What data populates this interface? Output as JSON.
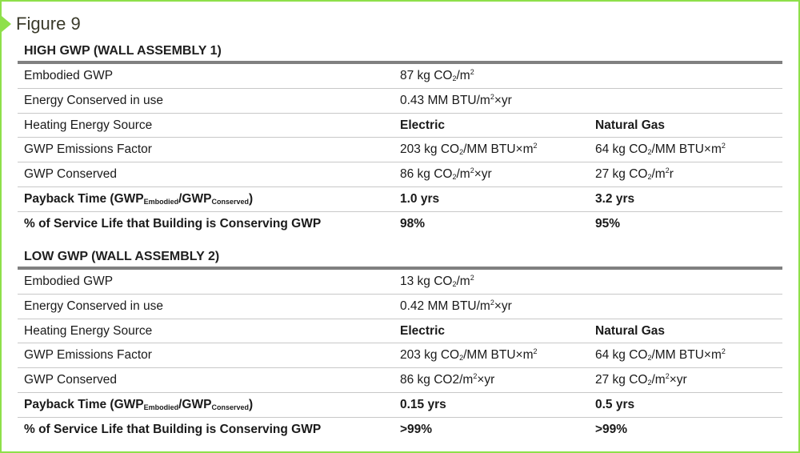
{
  "figure_label": "Figure 9",
  "sections": [
    {
      "title": "HIGH GWP (WALL ASSEMBLY 1)",
      "embodied": {
        "label": "Embodied GWP",
        "v_pre": "87 kg CO",
        "v_sub": "2",
        "v_mid": "/m",
        "v_sup": "2"
      },
      "energy": {
        "label": "Energy Conserved in use",
        "v_pre": "0.43 MM BTU/m",
        "v_sup": "2",
        "v_post": "×yr"
      },
      "source": {
        "label": "Heating Energy Source",
        "a": "Electric",
        "b": "Natural Gas"
      },
      "factor": {
        "label": "GWP Emissions Factor",
        "a_pre": "203 kg CO",
        "a_sub": "2",
        "a_mid": "/MM BTU×m",
        "a_sup": "2",
        "b_pre": "64 kg CO",
        "b_sub": "2",
        "b_mid": "/MM BTU×m",
        "b_sup": "2"
      },
      "conserved": {
        "label": "GWP Conserved",
        "a_pre": "86 kg CO",
        "a_sub": "2",
        "a_mid": "/m",
        "a_sup": "2",
        "a_post": "×yr",
        "b_pre": "27 kg CO",
        "b_sub": "2",
        "b_mid": "/m",
        "b_sup": "2",
        "b_post": "r"
      },
      "payback": {
        "label_pre": "Payback Time (GWP",
        "label_sub1": "Embodied",
        "label_mid": "/GWP",
        "label_sub2": "Conserved",
        "label_post": ")",
        "a": "1.0 yrs",
        "b": "3.2 yrs"
      },
      "service": {
        "label": "% of Service Life that Building is Conserving GWP",
        "a": "98%",
        "b": "95%"
      }
    },
    {
      "title": "LOW GWP (WALL ASSEMBLY 2)",
      "embodied": {
        "label": "Embodied GWP",
        "v_pre": "13 kg CO",
        "v_sub": "2",
        "v_mid": "/m",
        "v_sup": "2"
      },
      "energy": {
        "label": "Energy Conserved in use",
        "v_pre": "0.42 MM BTU/m",
        "v_sup": "2",
        "v_post": "×yr"
      },
      "source": {
        "label": "Heating Energy Source",
        "a": "Electric",
        "b": "Natural Gas"
      },
      "factor": {
        "label": "GWP Emissions Factor",
        "a_pre": "203 kg CO",
        "a_sub": "2",
        "a_mid": "/MM BTU×m",
        "a_sup": "2",
        "b_pre": "64 kg CO",
        "b_sub": "2",
        "b_mid": "/MM BTU×m",
        "b_sup": "2"
      },
      "conserved": {
        "label": "GWP Conserved",
        "a_pre": "86 kg CO2/m",
        "a_sub": "",
        "a_mid": "",
        "a_sup": "2",
        "a_post": "×yr",
        "b_pre": "27 kg CO",
        "b_sub": "2",
        "b_mid": "/m",
        "b_sup": "2",
        "b_post": "×yr"
      },
      "payback": {
        "label_pre": "Payback Time (GWP",
        "label_sub1": "Embodied",
        "label_mid": "/GWP",
        "label_sub2": "Conserved",
        "label_post": ")",
        "a": "0.15 yrs",
        "b": "0.5 yrs"
      },
      "service": {
        "label": "% of Service Life that Building is Conserving GWP",
        "a": ">99%",
        "b": ">99%"
      }
    }
  ]
}
